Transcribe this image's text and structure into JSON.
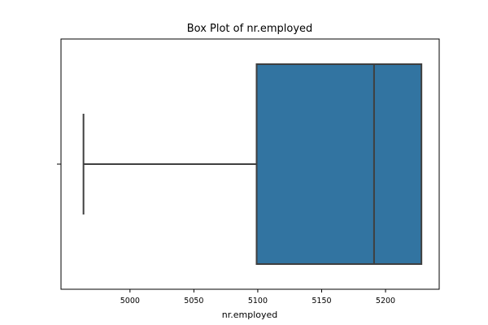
{
  "chart_data": {
    "type": "box",
    "title": "Box Plot of nr.employed",
    "xlabel": "nr.employed",
    "ylabel": "",
    "xlim": [
      4946,
      5242
    ],
    "xticks": [
      5000,
      5050,
      5100,
      5150,
      5200
    ],
    "orientation": "horizontal",
    "grid": false,
    "box": {
      "whisker_low": 4963.6,
      "q1": 5099.1,
      "median": 5191.0,
      "q3": 5228.1,
      "whisker_high": 5228.1
    },
    "colors": {
      "box_fill": "#3274a1",
      "line": "#3f3f3f",
      "axis": "#000000"
    }
  }
}
